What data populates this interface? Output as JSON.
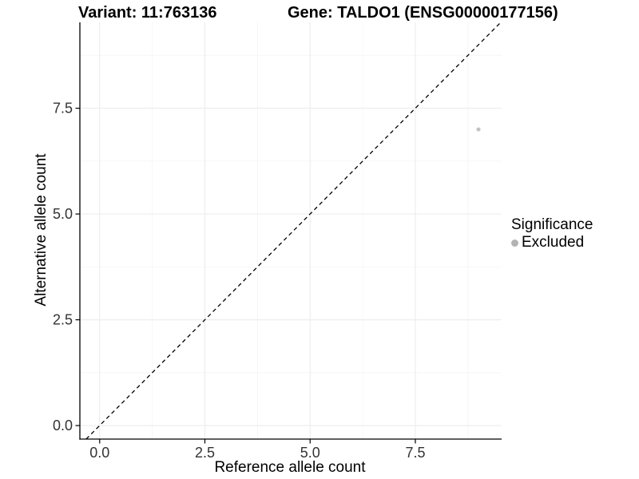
{
  "chart_data": {
    "type": "scatter",
    "titles": {
      "variant": "Variant: 11:763136",
      "gene": "Gene: TALDO1 (ENSG00000177156)"
    },
    "xlabel": "Reference allele count",
    "ylabel": "Alternative allele count",
    "xlim": [
      -0.47,
      9.55
    ],
    "ylim": [
      -0.32,
      9.53
    ],
    "x_ticks": {
      "values": [
        0,
        2.5,
        5,
        7.5
      ],
      "labels": [
        "0.0",
        "2.5",
        "5.0",
        "7.5"
      ]
    },
    "y_ticks": {
      "values": [
        0,
        2.5,
        5,
        7.5
      ],
      "labels": [
        "0.0",
        "2.5",
        "5.0",
        "7.5"
      ]
    },
    "x_minor_ticks": [
      1.25,
      3.75,
      6.25,
      8.75
    ],
    "y_minor_ticks": [
      1.25,
      3.75,
      6.25,
      8.75
    ],
    "grid": {
      "show": true,
      "major_color": "#ececec",
      "minor_color": "#f5f5f5"
    },
    "reference_line": {
      "type": "identity",
      "slope": 1,
      "intercept": 0,
      "style": "dashed",
      "color": "#000000"
    },
    "series": [
      {
        "name": "Excluded",
        "color": "#c3c3c3",
        "marker": "circle",
        "points": [
          {
            "x": 9,
            "y": 7
          }
        ]
      }
    ],
    "legend": {
      "title": "Significance",
      "position": "right",
      "entries": [
        {
          "label": "Excluded",
          "color": "#b3b3b3"
        }
      ]
    },
    "colors": {
      "axis_line": "#000000",
      "tick_label": "#333333",
      "text": "#000000",
      "background": "#ffffff"
    }
  }
}
